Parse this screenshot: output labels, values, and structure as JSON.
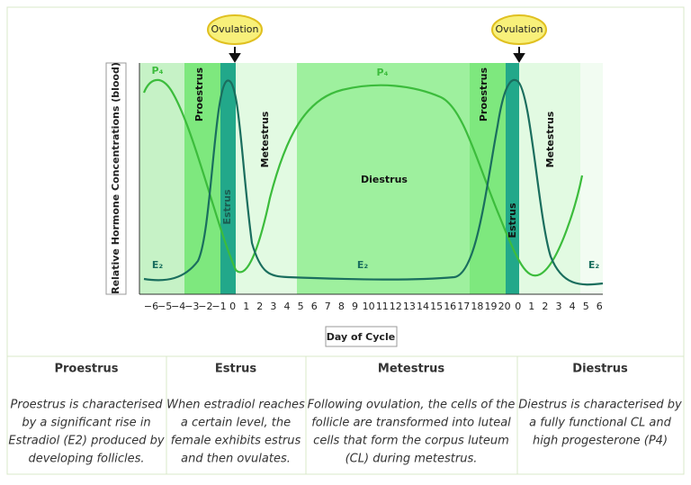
{
  "chart": {
    "ovulation": [
      "Ovulation",
      "Ovulation"
    ],
    "y_label": "Relative Hormone Concentrations (blood)",
    "x_label": "Day of Cycle",
    "x_ticks": [
      "−6",
      "−5",
      "−4",
      "−3",
      "−2",
      "−1",
      "0",
      "1",
      "2",
      "3",
      "4",
      "5",
      "6",
      "7",
      "8",
      "9",
      "10",
      "11",
      "12",
      "13",
      "14",
      "15",
      "16",
      "17",
      "18",
      "19",
      "20",
      "0",
      "1",
      "2",
      "3",
      "4",
      "5",
      "6"
    ],
    "phase_labels": [
      "Proestrus",
      "Estrus",
      "Metestrus",
      "Diestrus",
      "Proestrus",
      "Estrus",
      "Metestrus"
    ],
    "hormone_labels": [
      "P₄",
      "P₄",
      "E₂",
      "E₂",
      "E₂"
    ]
  },
  "table": {
    "headers": [
      "Proestrus",
      "Estrus",
      "Metestrus",
      "Diestrus"
    ],
    "descriptions": [
      [
        "Proestrus is characterised",
        "by a significant rise in",
        "Estradiol (E2) produced by",
        "developing follicles."
      ],
      [
        "When estradiol reaches",
        "a certain level, the",
        "female exhibits estrus",
        "and then ovulates."
      ],
      [
        "Following ovulation, the cells of the",
        "follicle are transformed into luteal",
        "cells that form the corpus luteum",
        "(CL) during metestrus."
      ],
      [
        "Diestrus is characterised by",
        "a fully functional CL and",
        "high progesterone (P4)"
      ]
    ]
  }
}
